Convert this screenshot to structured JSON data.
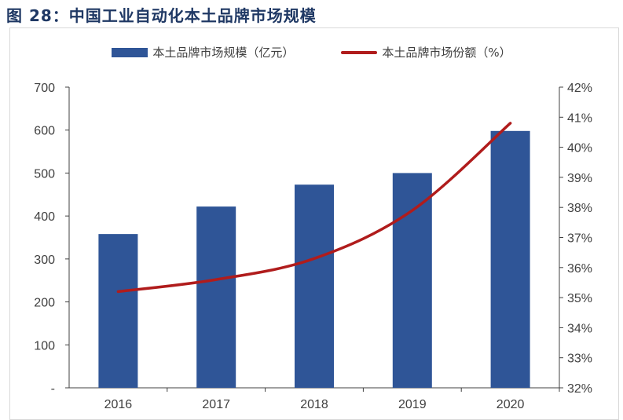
{
  "title": "图 28：中国工业自动化本土品牌市场规模",
  "chart_data": {
    "type": "bar+line",
    "title": "图 28：中国工业自动化本土品牌市场规模",
    "categories": [
      "2016",
      "2017",
      "2018",
      "2019",
      "2020"
    ],
    "series": [
      {
        "name": "本土品牌市场规模（亿元）",
        "type": "bar",
        "axis": "left",
        "values": [
          358,
          422,
          473,
          500,
          598
        ],
        "color": "#2f5597"
      },
      {
        "name": "本土品牌市场份额（%）",
        "type": "line",
        "axis": "right",
        "values": [
          35.2,
          35.6,
          36.3,
          37.9,
          40.8
        ],
        "color": "#b01c1c"
      }
    ],
    "left_axis": {
      "ylim": [
        0,
        700
      ],
      "ticks": [
        "-",
        "100",
        "200",
        "300",
        "400",
        "500",
        "600",
        "700"
      ]
    },
    "right_axis": {
      "ylim": [
        32,
        42
      ],
      "ticks": [
        "32%",
        "33%",
        "34%",
        "35%",
        "36%",
        "37%",
        "38%",
        "39%",
        "40%",
        "41%",
        "42%"
      ]
    },
    "legend": "top-center",
    "grid": false
  }
}
